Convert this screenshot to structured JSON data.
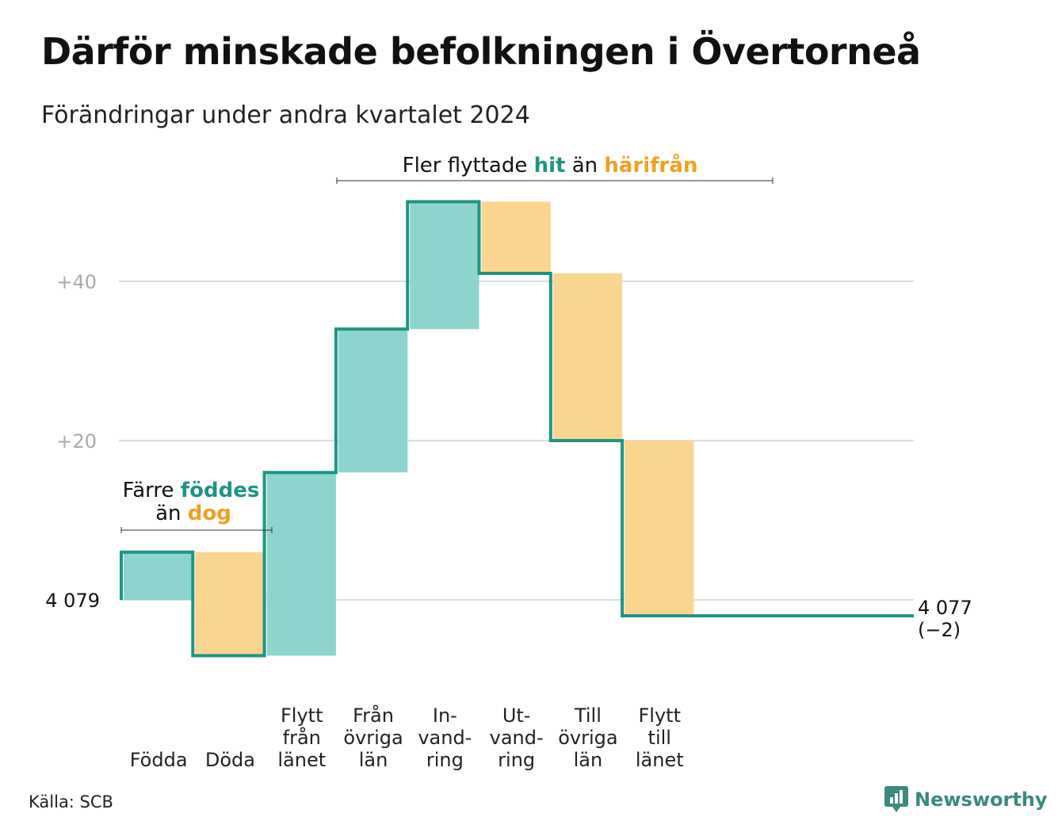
{
  "title": "Därför minskade befolkningen i Övertorneå",
  "subtitle": "Förändringar under andra kvartalet 2024",
  "source": "Källa: SCB",
  "brand": "Newsworthy",
  "colors": {
    "inflow": "#8dd5cc",
    "outflow": "#fad58f",
    "line": "#1e9484",
    "inflow_text": "#1e9484",
    "outflow_text": "#f0a020",
    "grid": "#dddddd",
    "tick": "#aaaaaa"
  },
  "annotations": {
    "births": {
      "line1_pre": "Färre ",
      "line1_em": "föddes",
      "line2_pre": "än ",
      "line2_em": "dog"
    },
    "moves": {
      "pre": "Fler flyttade ",
      "em1": "hit",
      "mid": " än ",
      "em2": "härifrån"
    }
  },
  "chart_data": {
    "type": "waterfall",
    "start_value": 4079,
    "start_label": "4 079",
    "end_value": 4077,
    "end_label": "4 077",
    "end_change_label": "(−2)",
    "y_ticks": [
      {
        "value": 20,
        "label": "+20"
      },
      {
        "value": 40,
        "label": "+40"
      }
    ],
    "ylim": [
      -15,
      50
    ],
    "steps": [
      {
        "label": [
          "Födda"
        ],
        "change": 6,
        "kind": "in"
      },
      {
        "label": [
          "Döda"
        ],
        "change": -13,
        "kind": "out"
      },
      {
        "label": [
          "Flytt",
          "från",
          "länet"
        ],
        "change": 23,
        "kind": "in"
      },
      {
        "label": [
          "Från",
          "övriga",
          "län"
        ],
        "change": 18,
        "kind": "in"
      },
      {
        "label": [
          "In-",
          "vand-",
          "ring"
        ],
        "change": 16,
        "kind": "in"
      },
      {
        "label": [
          "Ut-",
          "vand-",
          "ring"
        ],
        "change": -9,
        "kind": "out"
      },
      {
        "label": [
          "Till",
          "övriga",
          "län"
        ],
        "change": -21,
        "kind": "out"
      },
      {
        "label": [
          "Flytt",
          "till",
          "länet"
        ],
        "change": -22,
        "kind": "out"
      }
    ]
  }
}
